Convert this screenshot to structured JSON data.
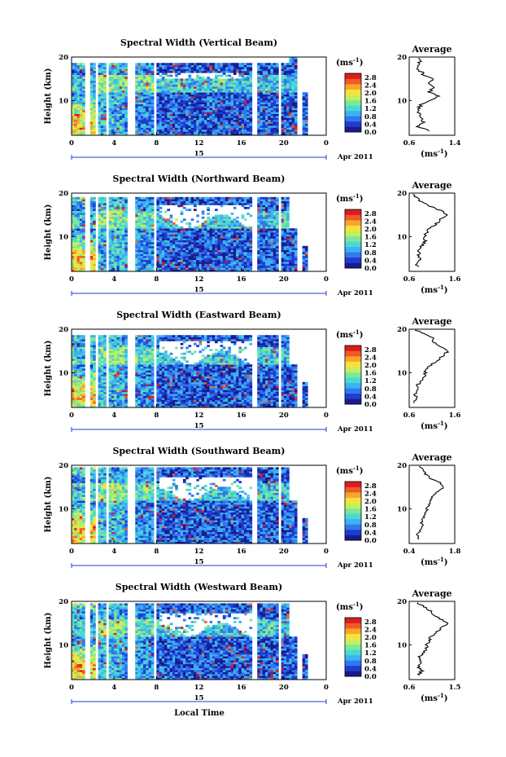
{
  "figure": {
    "ylabel": "Height (km)",
    "xlabel": "Local Time",
    "date_day": "15",
    "date_month": "Apr 2011",
    "colorbar_unit": "(ms",
    "colorbar_unit_exp": "-1",
    "colorbar_unit_close": ")",
    "colorbar_ticks": [
      "2.8",
      "2.4",
      "2.0",
      "1.6",
      "1.2",
      "0.8",
      "0.4",
      "0.0"
    ],
    "time_ticks": [
      "0",
      "4",
      "8",
      "12",
      "16",
      "20",
      "0"
    ],
    "height_ticks": [
      "20",
      "10"
    ],
    "avg_title": "Average",
    "avg_xlabel": "(ms",
    "avg_xlabel_exp": "-1",
    "avg_xlabel_close": ")",
    "colormap": [
      "#1a1a8c",
      "#1f3cd0",
      "#2f78ee",
      "#3fb0f2",
      "#49d9d4",
      "#7de89a",
      "#c6f05a",
      "#f6e23c",
      "#f9a52b",
      "#f25a24",
      "#d81e1e"
    ]
  },
  "chart_data": [
    {
      "type": "heatmap",
      "title": "Spectral Width (Vertical Beam)",
      "xlabel": "Local Time",
      "ylabel": "Height (km)",
      "xlim": [
        0,
        24
      ],
      "ylim": [
        2,
        20
      ],
      "zlim": [
        0.0,
        3.0
      ],
      "zunit": "ms-1",
      "x_ticks": [
        0,
        4,
        8,
        12,
        16,
        20,
        24
      ],
      "tick_labels": [
        "0",
        "4",
        "8",
        "12",
        "16",
        "20",
        "0"
      ],
      "average": {
        "title": "Average",
        "xlabel": "(ms-1)",
        "xticks": [
          "0.6",
          "1.4"
        ],
        "xlim": [
          0.6,
          1.4
        ],
        "heights": [
          3,
          4,
          5,
          6,
          7,
          8,
          9,
          10,
          11,
          12,
          13,
          14,
          15,
          16,
          17,
          18,
          19,
          20
        ],
        "values": [
          0.95,
          0.75,
          0.85,
          0.8,
          0.78,
          0.75,
          0.8,
          0.95,
          1.1,
          0.95,
          1.05,
          0.95,
          1.0,
          0.85,
          0.78,
          0.72,
          0.8,
          0.7
        ]
      }
    },
    {
      "type": "heatmap",
      "title": "Spectral Width (Northward Beam)",
      "xlabel": "Local Time",
      "ylabel": "Height (km)",
      "xlim": [
        0,
        24
      ],
      "ylim": [
        2,
        20
      ],
      "zlim": [
        0.0,
        3.0
      ],
      "zunit": "ms-1",
      "x_ticks": [
        0,
        4,
        8,
        12,
        16,
        20,
        24
      ],
      "tick_labels": [
        "0",
        "4",
        "8",
        "12",
        "16",
        "20",
        "0"
      ],
      "average": {
        "title": "Average",
        "xlabel": "(ms-1)",
        "xticks": [
          "0.6",
          "1.6"
        ],
        "xlim": [
          0.6,
          1.6
        ],
        "heights": [
          3,
          4,
          5,
          6,
          7,
          8,
          9,
          10,
          11,
          12,
          13,
          14,
          15,
          16,
          17,
          18,
          19,
          20
        ],
        "values": [
          0.8,
          0.75,
          0.85,
          0.8,
          0.82,
          0.88,
          0.95,
          0.92,
          1.0,
          1.05,
          1.2,
          1.3,
          1.4,
          1.3,
          1.05,
          0.85,
          0.75,
          0.7
        ]
      }
    },
    {
      "type": "heatmap",
      "title": "Spectral Width (Eastward Beam)",
      "xlabel": "Local Time",
      "ylabel": "Height (km)",
      "xlim": [
        0,
        24
      ],
      "ylim": [
        2,
        20
      ],
      "zlim": [
        0.0,
        3.0
      ],
      "zunit": "ms-1",
      "x_ticks": [
        0,
        4,
        8,
        12,
        16,
        20,
        24
      ],
      "tick_labels": [
        "0",
        "4",
        "8",
        "12",
        "16",
        "20",
        "0"
      ],
      "average": {
        "title": "Average",
        "xlabel": "(ms-1)",
        "xticks": [
          "0.6",
          "1.6"
        ],
        "xlim": [
          0.6,
          1.6
        ],
        "heights": [
          3,
          4,
          5,
          6,
          7,
          8,
          9,
          10,
          11,
          12,
          13,
          14,
          15,
          16,
          17,
          18,
          19,
          20
        ],
        "values": [
          0.7,
          0.75,
          0.72,
          0.8,
          0.78,
          0.85,
          0.92,
          0.95,
          1.0,
          1.1,
          1.25,
          1.35,
          1.45,
          1.3,
          1.15,
          1.1,
          0.9,
          0.7
        ]
      }
    },
    {
      "type": "heatmap",
      "title": "Spectral Width (Southward Beam)",
      "xlabel": "Local Time",
      "ylabel": "Height (km)",
      "xlim": [
        0,
        24
      ],
      "ylim": [
        2,
        20
      ],
      "zlim": [
        0.0,
        3.0
      ],
      "zunit": "ms-1",
      "x_ticks": [
        0,
        4,
        8,
        12,
        16,
        20,
        24
      ],
      "tick_labels": [
        "0",
        "4",
        "8",
        "12",
        "16",
        "20",
        "0"
      ],
      "average": {
        "title": "Average",
        "xlabel": "(ms-1)",
        "xticks": [
          "0.4",
          "1.8"
        ],
        "xlim": [
          0.4,
          1.8
        ],
        "heights": [
          3,
          4,
          5,
          6,
          7,
          8,
          9,
          10,
          11,
          12,
          13,
          14,
          15,
          16,
          17,
          18,
          19,
          20
        ],
        "values": [
          0.7,
          0.65,
          0.75,
          0.8,
          0.78,
          0.85,
          0.9,
          0.95,
          1.0,
          1.05,
          1.15,
          1.3,
          1.45,
          1.35,
          1.05,
          0.9,
          0.8,
          0.7
        ]
      }
    },
    {
      "type": "heatmap",
      "title": "Spectral Width (Westward Beam)",
      "xlabel": "Local Time",
      "ylabel": "Height (km)",
      "xlim": [
        0,
        24
      ],
      "ylim": [
        2,
        20
      ],
      "zlim": [
        0.0,
        3.0
      ],
      "zunit": "ms-1",
      "x_ticks": [
        0,
        4,
        8,
        12,
        16,
        20,
        24
      ],
      "tick_labels": [
        "0",
        "4",
        "8",
        "12",
        "16",
        "20",
        "0"
      ],
      "average": {
        "title": "Average",
        "xlabel": "(ms-1)",
        "xticks": [
          "0.6",
          "1.5"
        ],
        "xlim": [
          0.6,
          1.5
        ],
        "heights": [
          3,
          4,
          5,
          6,
          7,
          8,
          9,
          10,
          11,
          12,
          13,
          14,
          15,
          16,
          17,
          18,
          19,
          20
        ],
        "values": [
          0.8,
          0.85,
          0.78,
          0.82,
          0.8,
          0.88,
          0.92,
          0.95,
          1.0,
          1.05,
          1.15,
          1.25,
          1.35,
          1.2,
          1.1,
          1.0,
          0.85,
          0.75
        ]
      }
    }
  ]
}
